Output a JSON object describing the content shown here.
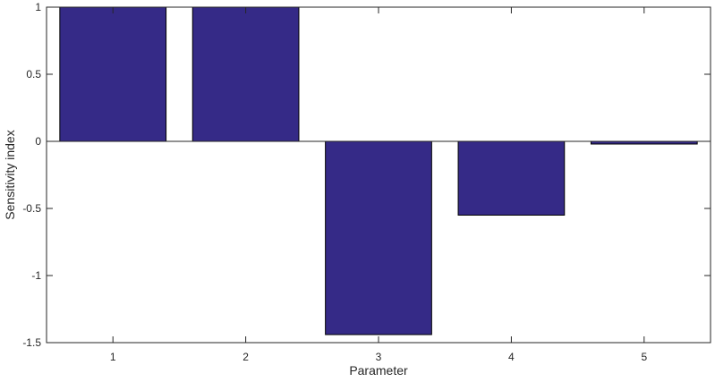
{
  "chart_data": {
    "type": "bar",
    "categories": [
      "1",
      "2",
      "3",
      "4",
      "5"
    ],
    "values": [
      1.0,
      1.0,
      -1.44,
      -0.55,
      -0.02
    ],
    "xlabel": "Parameter",
    "ylabel": "Sensitivity index",
    "ylim": [
      -1.5,
      1
    ],
    "yticks": [
      1,
      0.5,
      0,
      -0.5,
      -1,
      -1.5
    ],
    "ytick_labels": [
      "1",
      "0.5",
      "0",
      "-0.5",
      "-1",
      "-1.5"
    ],
    "grid": false,
    "bar_color": "#352a87",
    "edge_color": "#000000"
  }
}
